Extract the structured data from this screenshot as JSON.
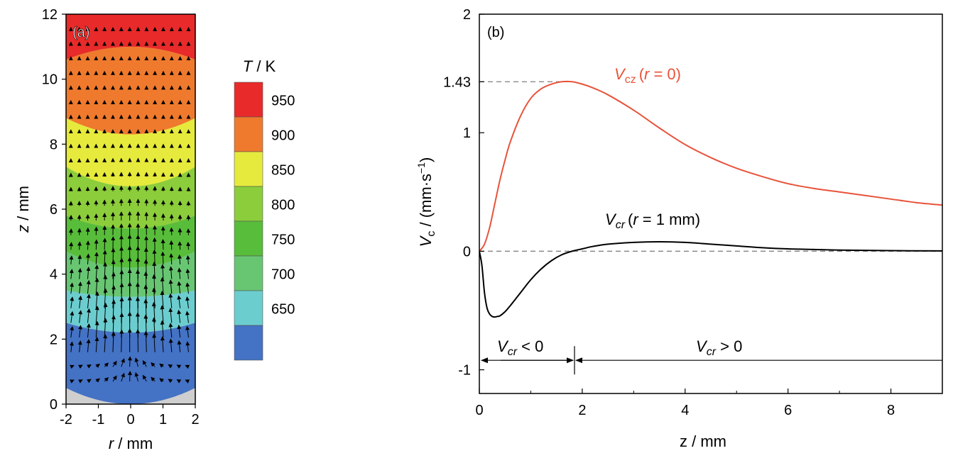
{
  "chart_data": [
    {
      "type": "heatmap",
      "panel_label": "(a)",
      "xlabel_var": "r",
      "xlabel_unit": " / mm",
      "ylabel_var": "z",
      "ylabel_unit": " / mm",
      "xlim": [
        -2,
        2
      ],
      "ylim": [
        0,
        12
      ],
      "x_ticks": [
        "-2",
        "-1",
        "0",
        "1",
        "2"
      ],
      "y_ticks": [
        "0",
        "2",
        "4",
        "6",
        "8",
        "10",
        "12"
      ],
      "colorbar": {
        "title_var": "T",
        "title_unit": " / K",
        "tick_labels": [
          "950",
          "900",
          "850",
          "800",
          "750",
          "700",
          "650"
        ],
        "levels": [
          950,
          900,
          850,
          800,
          750,
          700,
          650
        ],
        "colors": [
          "#e82a2a",
          "#ef7a2d",
          "#e6ea3c",
          "#8ccd3b",
          "#58bd3a",
          "#68c673",
          "#6ccdcf",
          "#4472c4"
        ]
      },
      "contour_boundaries_z_at_center": [
        11.0,
        8.3,
        6.7,
        5.4,
        4.2,
        3.3,
        2.2,
        0.0
      ],
      "contour_boundaries_z_at_edge": [
        10.6,
        8.8,
        7.3,
        5.8,
        4.7,
        3.5,
        2.5,
        0.5
      ],
      "vectors": "velocity arrows, mostly upward, strongest near r=0 for z between 1 and 4 mm"
    },
    {
      "type": "line",
      "panel_label": "(b)",
      "xlabel": "z / mm",
      "ylabel_main": "V",
      "ylabel_sub": "c",
      "ylabel_unit": " / (mm·s",
      "ylabel_exp": "−1",
      "ylabel_close": ")",
      "xlim": [
        0,
        9
      ],
      "ylim": [
        -1.2,
        2
      ],
      "x_ticks": [
        "0",
        "2",
        "4",
        "6",
        "8"
      ],
      "y_ticks": [
        "2",
        "1.43",
        "1",
        "0",
        "-1"
      ],
      "series": [
        {
          "name": "Vcz (r = 0)",
          "color": "#e8533a",
          "x": [
            0,
            0.1,
            0.2,
            0.3,
            0.4,
            0.5,
            0.6,
            0.8,
            1.0,
            1.2,
            1.4,
            1.6,
            1.8,
            2.0,
            2.2,
            2.5,
            3.0,
            3.5,
            4.0,
            4.5,
            5.0,
            5.5,
            6.0,
            6.5,
            7.0,
            7.5,
            8.0,
            8.5,
            9.0
          ],
          "y": [
            0,
            0.06,
            0.2,
            0.4,
            0.6,
            0.77,
            0.92,
            1.14,
            1.29,
            1.37,
            1.41,
            1.43,
            1.43,
            1.41,
            1.38,
            1.32,
            1.19,
            1.04,
            0.9,
            0.79,
            0.7,
            0.63,
            0.57,
            0.53,
            0.5,
            0.47,
            0.44,
            0.41,
            0.39
          ]
        },
        {
          "name": "Vcr (r = 1 mm)",
          "color": "#000000",
          "x": [
            0,
            0.05,
            0.1,
            0.15,
            0.2,
            0.25,
            0.3,
            0.35,
            0.4,
            0.5,
            0.6,
            0.8,
            1.0,
            1.2,
            1.4,
            1.6,
            1.8,
            2.0,
            2.2,
            2.5,
            3.0,
            3.5,
            4.0,
            4.5,
            5.0,
            5.5,
            6.0,
            6.5,
            7.0,
            8.0,
            9.0
          ],
          "y": [
            0,
            -0.12,
            -0.35,
            -0.48,
            -0.53,
            -0.55,
            -0.555,
            -0.55,
            -0.545,
            -0.51,
            -0.46,
            -0.35,
            -0.24,
            -0.15,
            -0.08,
            -0.03,
            0.0,
            0.02,
            0.04,
            0.06,
            0.075,
            0.08,
            0.075,
            0.06,
            0.045,
            0.03,
            0.02,
            0.015,
            0.01,
            0.005,
            0.003
          ]
        }
      ],
      "reference_lines": [
        {
          "y": 1.43,
          "style": "dashed",
          "x_end": 1.8
        },
        {
          "y": 0,
          "style": "dashed"
        }
      ],
      "annotations": {
        "vcz_main": "V",
        "vcz_sub": "cz",
        "vcz_cond_open": "(",
        "vcz_cond_var": "r",
        "vcz_cond_rest": " = 0)",
        "vcr_main": "V",
        "vcr_sub": "cr",
        "vcr_cond_open": "(",
        "vcr_cond_var": "r",
        "vcr_cond_rest": " = 1 mm)",
        "region_left_main": "V",
        "region_left_sub": "cr",
        "region_left_rel": " < 0",
        "region_right_main": "V",
        "region_right_sub": "cr",
        "region_right_rel": " > 0",
        "region_y": -0.92,
        "region_split_x": 1.85
      }
    }
  ]
}
